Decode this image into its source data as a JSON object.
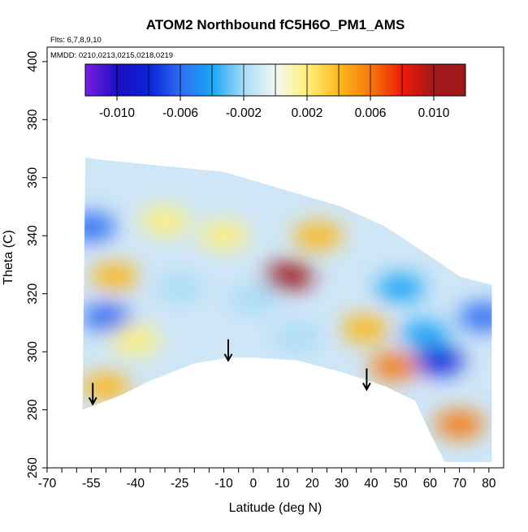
{
  "chart_data": {
    "type": "heatmap",
    "title": "ATOM2 Northbound fC5H6O_PM1_AMS",
    "annotations": {
      "flights": "Flts: 6,7,8,9,10",
      "dates": "MMDD: 0210,0213,0215,0218,0219"
    },
    "xlabel": "Latitude (deg N)",
    "ylabel": "Theta (C)",
    "xlim": [
      -70,
      85
    ],
    "ylim": [
      260,
      405
    ],
    "x_ticks": [
      -70,
      -55,
      -40,
      -25,
      -10,
      0,
      10,
      20,
      30,
      40,
      50,
      60,
      70,
      80
    ],
    "x_tick_labels": [
      "-70",
      "-55",
      "-40",
      "-25",
      "-10",
      "0",
      "10",
      "20",
      "30",
      "40",
      "50",
      "60",
      "70",
      "80"
    ],
    "x_minor_ticks": [
      -65,
      -60,
      -50,
      -45,
      -35,
      -30,
      -20,
      -15,
      -5,
      5,
      15,
      25,
      35,
      45,
      55,
      65,
      75
    ],
    "y_ticks": [
      260,
      280,
      300,
      320,
      340,
      360,
      380,
      400
    ],
    "y_tick_labels": [
      "260",
      "280",
      "300",
      "320",
      "340",
      "360",
      "380",
      "400"
    ],
    "colorbar": {
      "range": [
        -0.012,
        0.012
      ],
      "bins": 12,
      "ticks": [
        -0.01,
        -0.006,
        -0.002,
        0.002,
        0.006,
        0.01
      ],
      "tick_labels": [
        "-0.010",
        "-0.006",
        "-0.002",
        "0.002",
        "0.006",
        "0.010"
      ],
      "colors": [
        "#7a1ee6",
        "#1c0fc0",
        "#0a22d8",
        "#2d6df2",
        "#1aa6f5",
        "#a8dbf8",
        "#f4f7f2",
        "#fff07a",
        "#fbb81f",
        "#f67a0a",
        "#ee1a06",
        "#a0181a"
      ]
    },
    "domain_envelope": {
      "top": [
        [
          -57,
          367
        ],
        [
          -50,
          366
        ],
        [
          -30,
          364
        ],
        [
          -10,
          362
        ],
        [
          10,
          356
        ],
        [
          30,
          350
        ],
        [
          45,
          343
        ],
        [
          60,
          333
        ],
        [
          70,
          326
        ],
        [
          81,
          323
        ]
      ],
      "bottom": [
        [
          81,
          262
        ],
        [
          75,
          262
        ],
        [
          65,
          262
        ],
        [
          60,
          272
        ],
        [
          55,
          283
        ],
        [
          45,
          288
        ],
        [
          30,
          293
        ],
        [
          15,
          297
        ],
        [
          0,
          298
        ],
        [
          -8,
          298
        ],
        [
          -20,
          296
        ],
        [
          -35,
          290
        ],
        [
          -45,
          285
        ],
        [
          -58,
          280
        ]
      ]
    },
    "field_features": [
      {
        "lat": -55,
        "theta": 343,
        "value": -0.006
      },
      {
        "lat": -50,
        "theta": 312,
        "value": -0.005
      },
      {
        "lat": -50,
        "theta": 288,
        "value": 0.005
      },
      {
        "lat": -47,
        "theta": 326,
        "value": 0.004
      },
      {
        "lat": -40,
        "theta": 304,
        "value": 0.003
      },
      {
        "lat": -30,
        "theta": 345,
        "value": 0.003
      },
      {
        "lat": -25,
        "theta": 322,
        "value": -0.001
      },
      {
        "lat": -10,
        "theta": 340,
        "value": 0.003
      },
      {
        "lat": 0,
        "theta": 318,
        "value": -0.001
      },
      {
        "lat": 12,
        "theta": 326,
        "value": 0.011
      },
      {
        "lat": 15,
        "theta": 305,
        "value": -0.002
      },
      {
        "lat": 22,
        "theta": 340,
        "value": 0.004
      },
      {
        "lat": 38,
        "theta": 308,
        "value": 0.005
      },
      {
        "lat": 48,
        "theta": 295,
        "value": 0.007
      },
      {
        "lat": 50,
        "theta": 322,
        "value": -0.004
      },
      {
        "lat": 58,
        "theta": 306,
        "value": -0.003
      },
      {
        "lat": 63,
        "theta": 297,
        "value": -0.008
      },
      {
        "lat": 70,
        "theta": 275,
        "value": 0.006
      },
      {
        "lat": 78,
        "theta": 312,
        "value": -0.005
      }
    ],
    "arrows": [
      {
        "lat": -54.5,
        "theta": 282
      },
      {
        "lat": -8.5,
        "theta": 297
      },
      {
        "lat": 38.5,
        "theta": 287
      }
    ],
    "grid": false,
    "legend": "colorbar top, inside plot"
  }
}
